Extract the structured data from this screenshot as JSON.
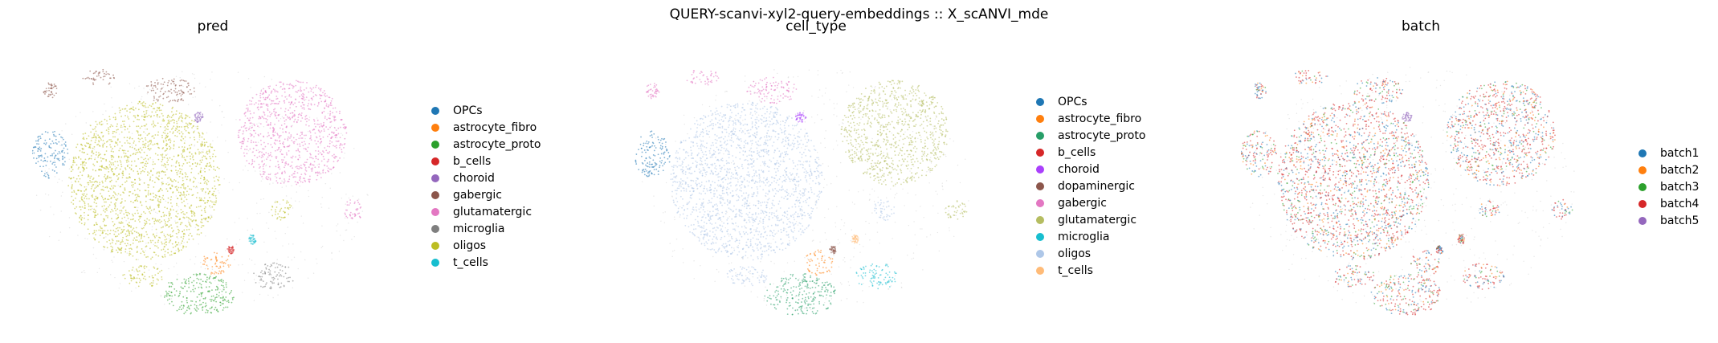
{
  "suptitle": "QUERY-scanvi-xyl2-query-embeddings :: X_scANVI_mde",
  "chart_data": [
    {
      "type": "scatter",
      "title": "pred",
      "legend_position": "right",
      "categories": [
        "OPCs",
        "astrocyte_fibro",
        "astrocyte_proto",
        "b_cells",
        "choroid",
        "gabergic",
        "glutamatergic",
        "microglia",
        "oligos",
        "t_cells"
      ],
      "colors": [
        "#1f77b4",
        "#ff7f0e",
        "#2ca02c",
        "#d62728",
        "#9467bd",
        "#8c564b",
        "#e377c2",
        "#7f7f7f",
        "#bcbd22",
        "#17becf"
      ],
      "clusters": [
        {
          "label": "oligos",
          "x": 0.31,
          "y": 0.47,
          "rx": 0.21,
          "ry": 0.3
        },
        {
          "label": "OPCs",
          "x": 0.05,
          "y": 0.37,
          "rx": 0.05,
          "ry": 0.09
        },
        {
          "label": "glutamatergic",
          "x": 0.72,
          "y": 0.29,
          "rx": 0.15,
          "ry": 0.2
        },
        {
          "label": "glutamatergic",
          "x": 0.89,
          "y": 0.58,
          "rx": 0.03,
          "ry": 0.04
        },
        {
          "label": "gabergic",
          "x": 0.38,
          "y": 0.13,
          "rx": 0.07,
          "ry": 0.05
        },
        {
          "label": "gabergic",
          "x": 0.19,
          "y": 0.08,
          "rx": 0.05,
          "ry": 0.03
        },
        {
          "label": "gabergic",
          "x": 0.05,
          "y": 0.13,
          "rx": 0.02,
          "ry": 0.03
        },
        {
          "label": "astrocyte_proto",
          "x": 0.46,
          "y": 0.9,
          "rx": 0.1,
          "ry": 0.08
        },
        {
          "label": "astrocyte_fibro",
          "x": 0.51,
          "y": 0.78,
          "rx": 0.04,
          "ry": 0.05
        },
        {
          "label": "microglia",
          "x": 0.67,
          "y": 0.83,
          "rx": 0.06,
          "ry": 0.05
        },
        {
          "label": "oligos",
          "x": 0.69,
          "y": 0.58,
          "rx": 0.03,
          "ry": 0.04
        },
        {
          "label": "oligos",
          "x": 0.31,
          "y": 0.83,
          "rx": 0.06,
          "ry": 0.04
        },
        {
          "label": "choroid",
          "x": 0.46,
          "y": 0.23,
          "rx": 0.015,
          "ry": 0.02
        },
        {
          "label": "t_cells",
          "x": 0.61,
          "y": 0.69,
          "rx": 0.01,
          "ry": 0.02
        },
        {
          "label": "b_cells",
          "x": 0.55,
          "y": 0.73,
          "rx": 0.01,
          "ry": 0.015
        }
      ]
    },
    {
      "type": "scatter",
      "title": "cell_type",
      "legend_position": "right",
      "categories": [
        "OPCs",
        "astrocyte_fibro",
        "astrocyte_proto",
        "b_cells",
        "choroid",
        "dopaminergic",
        "gabergic",
        "glutamatergic",
        "microglia",
        "oligos",
        "t_cells"
      ],
      "colors": [
        "#1f77b4",
        "#ff7f0e",
        "#279e68",
        "#d62728",
        "#aa40fc",
        "#8c564b",
        "#e377c2",
        "#b5bd61",
        "#17becf",
        "#aec7e8",
        "#ffbb78"
      ],
      "clusters": [
        {
          "label": "oligos",
          "x": 0.31,
          "y": 0.47,
          "rx": 0.21,
          "ry": 0.3
        },
        {
          "label": "OPCs",
          "x": 0.05,
          "y": 0.37,
          "rx": 0.05,
          "ry": 0.09
        },
        {
          "label": "glutamatergic",
          "x": 0.72,
          "y": 0.29,
          "rx": 0.15,
          "ry": 0.2
        },
        {
          "label": "glutamatergic",
          "x": 0.89,
          "y": 0.58,
          "rx": 0.03,
          "ry": 0.04
        },
        {
          "label": "gabergic",
          "x": 0.38,
          "y": 0.13,
          "rx": 0.07,
          "ry": 0.05
        },
        {
          "label": "gabergic",
          "x": 0.19,
          "y": 0.08,
          "rx": 0.05,
          "ry": 0.03
        },
        {
          "label": "gabergic",
          "x": 0.05,
          "y": 0.13,
          "rx": 0.02,
          "ry": 0.03
        },
        {
          "label": "astrocyte_proto",
          "x": 0.46,
          "y": 0.9,
          "rx": 0.1,
          "ry": 0.08
        },
        {
          "label": "astrocyte_fibro",
          "x": 0.51,
          "y": 0.78,
          "rx": 0.04,
          "ry": 0.05
        },
        {
          "label": "microglia",
          "x": 0.67,
          "y": 0.83,
          "rx": 0.06,
          "ry": 0.05
        },
        {
          "label": "oligos",
          "x": 0.69,
          "y": 0.58,
          "rx": 0.03,
          "ry": 0.04
        },
        {
          "label": "oligos",
          "x": 0.31,
          "y": 0.83,
          "rx": 0.06,
          "ry": 0.04
        },
        {
          "label": "choroid",
          "x": 0.46,
          "y": 0.23,
          "rx": 0.015,
          "ry": 0.02
        },
        {
          "label": "t_cells",
          "x": 0.61,
          "y": 0.69,
          "rx": 0.01,
          "ry": 0.02
        },
        {
          "label": "dopaminergic",
          "x": 0.55,
          "y": 0.73,
          "rx": 0.01,
          "ry": 0.015
        }
      ]
    },
    {
      "type": "scatter",
      "title": "batch",
      "legend_position": "right",
      "categories": [
        "batch1",
        "batch2",
        "batch3",
        "batch4",
        "batch5"
      ],
      "colors": [
        "#1f77b4",
        "#ff7f0e",
        "#2ca02c",
        "#d62728",
        "#9467bd"
      ],
      "clusters": [
        {
          "label": "batch1",
          "x": 0.31,
          "y": 0.47,
          "rx": 0.21,
          "ry": 0.3
        },
        {
          "label": "batch1",
          "x": 0.05,
          "y": 0.37,
          "rx": 0.05,
          "ry": 0.09
        },
        {
          "label": "batch1",
          "x": 0.72,
          "y": 0.29,
          "rx": 0.15,
          "ry": 0.2
        },
        {
          "label": "batch1",
          "x": 0.89,
          "y": 0.58,
          "rx": 0.03,
          "ry": 0.04
        },
        {
          "label": "batch1",
          "x": 0.38,
          "y": 0.13,
          "rx": 0.07,
          "ry": 0.05
        },
        {
          "label": "batch1",
          "x": 0.19,
          "y": 0.08,
          "rx": 0.05,
          "ry": 0.03
        },
        {
          "label": "batch1",
          "x": 0.05,
          "y": 0.13,
          "rx": 0.02,
          "ry": 0.03
        },
        {
          "label": "batch1",
          "x": 0.46,
          "y": 0.9,
          "rx": 0.1,
          "ry": 0.08
        },
        {
          "label": "batch1",
          "x": 0.51,
          "y": 0.78,
          "rx": 0.04,
          "ry": 0.05
        },
        {
          "label": "batch1",
          "x": 0.67,
          "y": 0.83,
          "rx": 0.06,
          "ry": 0.05
        },
        {
          "label": "batch1",
          "x": 0.69,
          "y": 0.58,
          "rx": 0.03,
          "ry": 0.04
        },
        {
          "label": "batch1",
          "x": 0.31,
          "y": 0.83,
          "rx": 0.06,
          "ry": 0.04
        },
        {
          "label": "batch5",
          "x": 0.46,
          "y": 0.23,
          "rx": 0.015,
          "ry": 0.02
        },
        {
          "label": "batch1",
          "x": 0.61,
          "y": 0.69,
          "rx": 0.01,
          "ry": 0.02
        },
        {
          "label": "batch1",
          "x": 0.55,
          "y": 0.73,
          "rx": 0.01,
          "ry": 0.015
        }
      ],
      "mixture": [
        "batch1",
        "batch1",
        "batch2",
        "batch3",
        "batch4",
        "batch4",
        "batch4",
        "batch4"
      ]
    }
  ]
}
